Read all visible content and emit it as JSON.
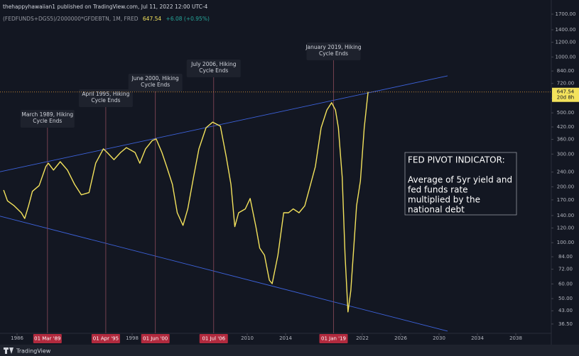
{
  "chart_data": {
    "type": "line",
    "header": {
      "byline": "thehappyhawaiian1 published on TradingView.com, Jul 11, 2022 12:00 UTC-4",
      "symbol": "(FEDFUNDS+DGS5)/2000000*GFDEBTN, 1M, FRED",
      "last": "647.54",
      "change": "+6.08 (+0.95%)"
    },
    "brand": "TradingView",
    "log_y": true,
    "color": "#f3e25c",
    "x": [
      1984.6,
      1985.0,
      1985.7,
      1986.44,
      1986.8,
      1987.2,
      1987.6,
      1988.3,
      1989.0,
      1989.26,
      1989.8,
      1990.5,
      1991.25,
      1992.0,
      1992.7,
      1993.5,
      1994.2,
      1995.0,
      1995.4,
      1996.1,
      1996.8,
      1997.4,
      1998.3,
      1998.8,
      1999.4,
      2000.1,
      2000.5,
      2001.1,
      2001.6,
      2002.2,
      2002.7,
      2003.3,
      2003.8,
      2004.4,
      2004.96,
      2005.7,
      2006.4,
      2007.2,
      2007.8,
      2008.3,
      2008.7,
      2009.1,
      2009.8,
      2010.3,
      2010.9,
      2011.3,
      2011.8,
      2012.3,
      2012.6,
      2013.2,
      2013.8,
      2014.3,
      2014.8,
      2015.4,
      2016.0,
      2016.5,
      2017.1,
      2017.7,
      2018.3,
      2018.8,
      2019.2,
      2019.5,
      2019.9,
      2020.2,
      2020.5,
      2020.8,
      2021.1,
      2021.4,
      2021.8,
      2022.2,
      2022.6
    ],
    "values": [
      192,
      168,
      158,
      145,
      135,
      158,
      189,
      203,
      257,
      268,
      246,
      273,
      246,
      206,
      181,
      186,
      268,
      320,
      306,
      280,
      306,
      325,
      306,
      268,
      320,
      355,
      362,
      306,
      257,
      206,
      145,
      124,
      152,
      225,
      320,
      416,
      446,
      424,
      292,
      206,
      122,
      145,
      152,
      173,
      122,
      93.5,
      85.6,
      62.9,
      60.2,
      85.6,
      145,
      145,
      152,
      145,
      158,
      197,
      257,
      416,
      518,
      567,
      518,
      416,
      225,
      85.6,
      42.4,
      55.2,
      93.5,
      158,
      215,
      416,
      647.54
    ],
    "xlim": [
      1984.22,
      2041.63
    ],
    "ylim": [
      33.1,
      1823
    ],
    "xticks": [
      1986,
      1998,
      2010,
      2014,
      2022,
      2026,
      2030,
      2034,
      2038
    ],
    "yticks": [
      {
        "value": 36.5,
        "label": "36.50"
      },
      {
        "value": 43,
        "label": "43.00"
      },
      {
        "value": 50,
        "label": "50.00"
      },
      {
        "value": 60,
        "label": "60.00"
      },
      {
        "value": 72,
        "label": "72.00"
      },
      {
        "value": 84,
        "label": "84.00"
      },
      {
        "value": 100,
        "label": "100.00"
      },
      {
        "value": 120,
        "label": "120.00"
      },
      {
        "value": 140,
        "label": "140.00"
      },
      {
        "value": 170,
        "label": "170.00"
      },
      {
        "value": 200,
        "label": "200.00"
      },
      {
        "value": 240,
        "label": "240.00"
      },
      {
        "value": 300,
        "label": "300.00"
      },
      {
        "value": 360,
        "label": "360.00"
      },
      {
        "value": 420,
        "label": "420.00"
      },
      {
        "value": 500,
        "label": "500.00"
      },
      {
        "value": 600,
        "label": "600.00"
      },
      {
        "value": 720,
        "label": "720.00"
      },
      {
        "value": 840,
        "label": "840.00"
      },
      {
        "value": 1000,
        "label": "1000.00"
      },
      {
        "value": 1200,
        "label": "1200.00"
      },
      {
        "value": 1400,
        "label": "1400.00"
      },
      {
        "value": 1700,
        "label": "1700.00"
      }
    ],
    "last_value": 647.54,
    "countdown": "20d 8h",
    "trendline_color": "#3d63dd",
    "trendlines": [
      {
        "x": [
          1984.22,
          2030.89
        ],
        "values": [
          241,
          791
        ]
      },
      {
        "x": [
          1984.22,
          2030.89
        ],
        "values": [
          139,
          33.4
        ]
      }
    ],
    "events": [
      {
        "x": 1989.17,
        "label": "01 Mar '89",
        "text": [
          "March 1989, Hiking",
          "Cycle Ends"
        ]
      },
      {
        "x": 1995.25,
        "label": "01 Apr '95",
        "text": [
          "April 1995, Hiking",
          "Cycle Ends"
        ]
      },
      {
        "x": 2000.42,
        "label": "01 Jun '00",
        "text": [
          "June 2000, Hiking",
          "Cycle Ends"
        ]
      },
      {
        "x": 2006.5,
        "label": "01 Jul '06",
        "text": [
          "July 2006, Hiking",
          "Cycle Ends"
        ]
      },
      {
        "x": 2019.0,
        "label": "01 Jan '19",
        "text": [
          "January 2019, Hiking",
          "Cycle Ends"
        ]
      }
    ],
    "note": {
      "title": "FED PIVOT INDICATOR:",
      "lines": [
        "Average of 5yr yield and",
        "fed funds rate",
        "multiplied by the",
        "national debt"
      ]
    }
  }
}
